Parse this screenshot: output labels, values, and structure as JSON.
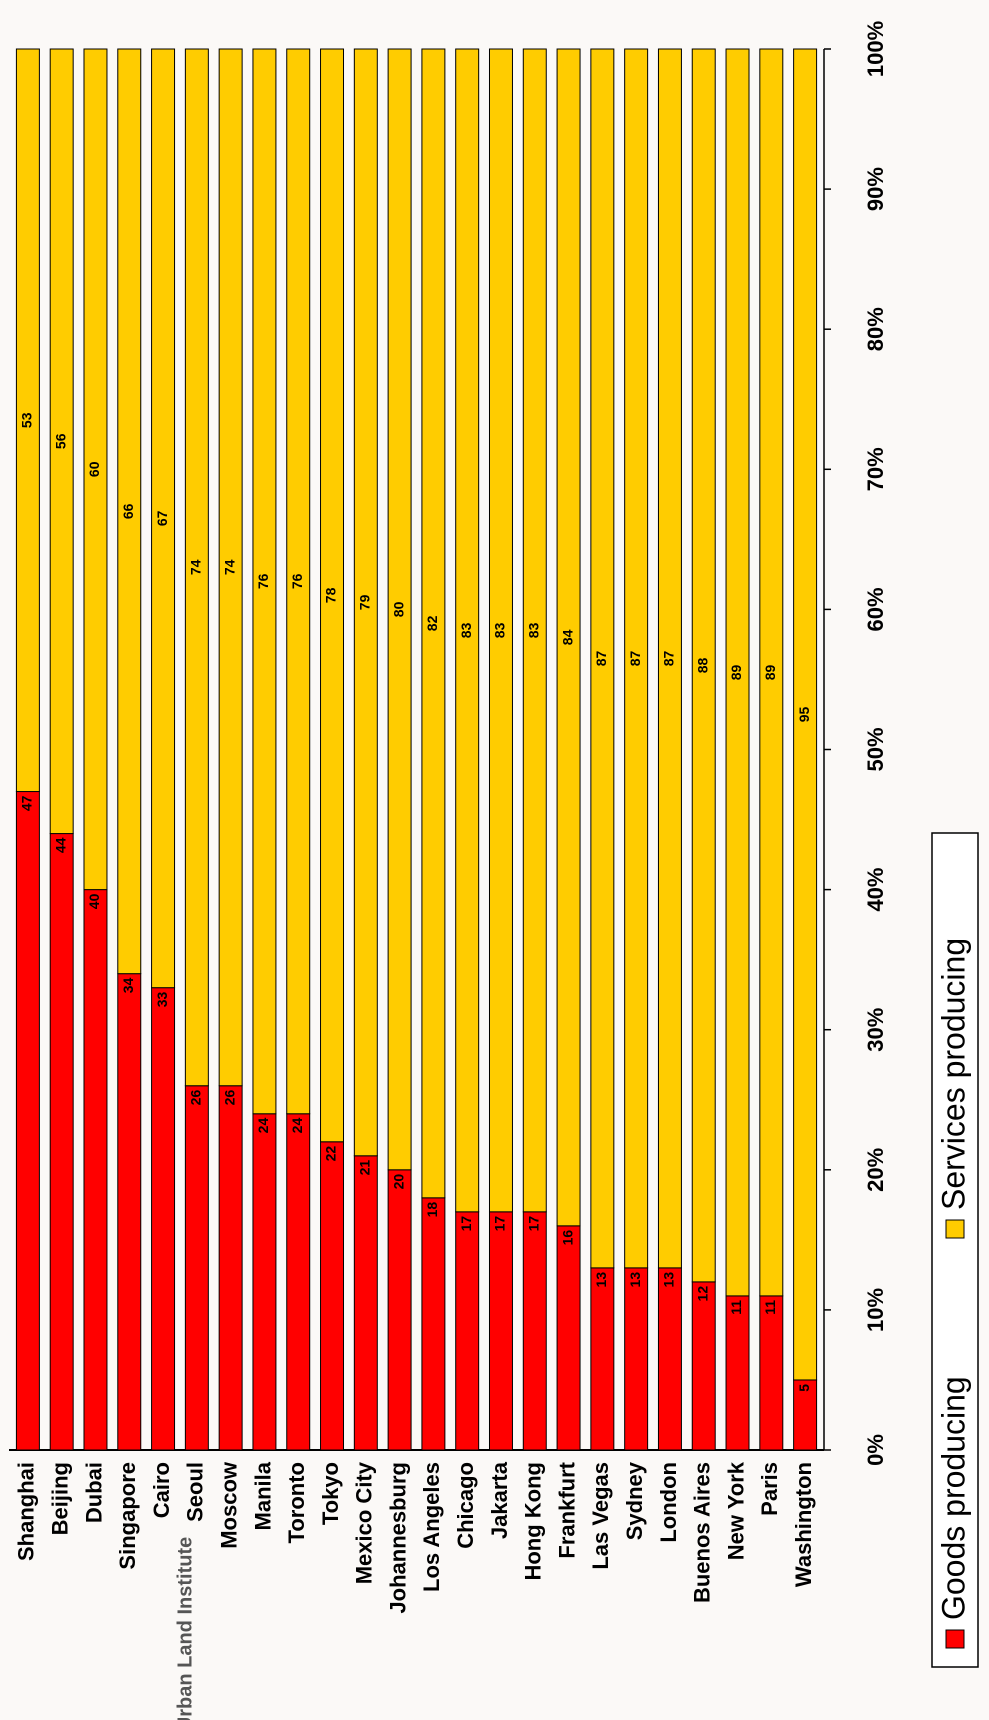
{
  "chart_data": {
    "type": "stacked_bar",
    "orientation": "horizontal",
    "rotated": true,
    "categories": [
      "Shanghai",
      "Beijing",
      "Dubai",
      "Singapore",
      "Cairo",
      "Seoul",
      "Moscow",
      "Manila",
      "Toronto",
      "Tokyo",
      "Mexico City",
      "Johannesburg",
      "Los Angeles",
      "Chicago",
      "Jakarta",
      "Hong Kong",
      "Frankfurt",
      "Las Vegas",
      "Sydney",
      "London",
      "Buenos Aires",
      "New York",
      "Paris",
      "Washington"
    ],
    "series": [
      {
        "name": "Goods producing",
        "color": "#ff0000",
        "values": [
          47,
          44,
          40,
          34,
          33,
          26,
          26,
          24,
          24,
          22,
          21,
          20,
          18,
          17,
          17,
          17,
          16,
          13,
          13,
          13,
          12,
          11,
          11,
          5
        ]
      },
      {
        "name": "Services producing",
        "color": "#ffcc00",
        "values": [
          53,
          56,
          60,
          66,
          67,
          74,
          74,
          76,
          76,
          78,
          79,
          80,
          82,
          83,
          83,
          83,
          84,
          87,
          87,
          87,
          88,
          89,
          89,
          95
        ]
      }
    ],
    "xlim": [
      0,
      100
    ],
    "xticks": [
      {
        "value": 0,
        "label": "0%"
      },
      {
        "value": 10,
        "label": "10%"
      },
      {
        "value": 20,
        "label": "20%"
      },
      {
        "value": 30,
        "label": "30%"
      },
      {
        "value": 40,
        "label": "40%"
      },
      {
        "value": 50,
        "label": "50%"
      },
      {
        "value": 60,
        "label": "60%"
      },
      {
        "value": 70,
        "label": "70%"
      },
      {
        "value": 80,
        "label": "80%"
      },
      {
        "value": 90,
        "label": "90%"
      },
      {
        "value": 100,
        "label": "100%"
      }
    ],
    "grid": false,
    "logo": "Urban Land Institute"
  }
}
